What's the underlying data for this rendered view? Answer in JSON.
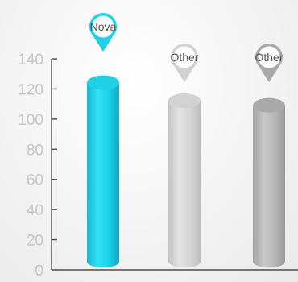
{
  "chart_data": {
    "type": "bar",
    "style": "3d-cylinder",
    "categories": [
      "Nova",
      "Other",
      "Other"
    ],
    "values": [
      129,
      117,
      114
    ],
    "ylim": [
      0,
      140
    ],
    "yticks": [
      0,
      20,
      40,
      60,
      80,
      100,
      120,
      140
    ],
    "grid": false,
    "colors": [
      "#1fd0e6",
      "#d2d2d2",
      "#a9a9a9"
    ],
    "marker": "map-pin-icon"
  }
}
